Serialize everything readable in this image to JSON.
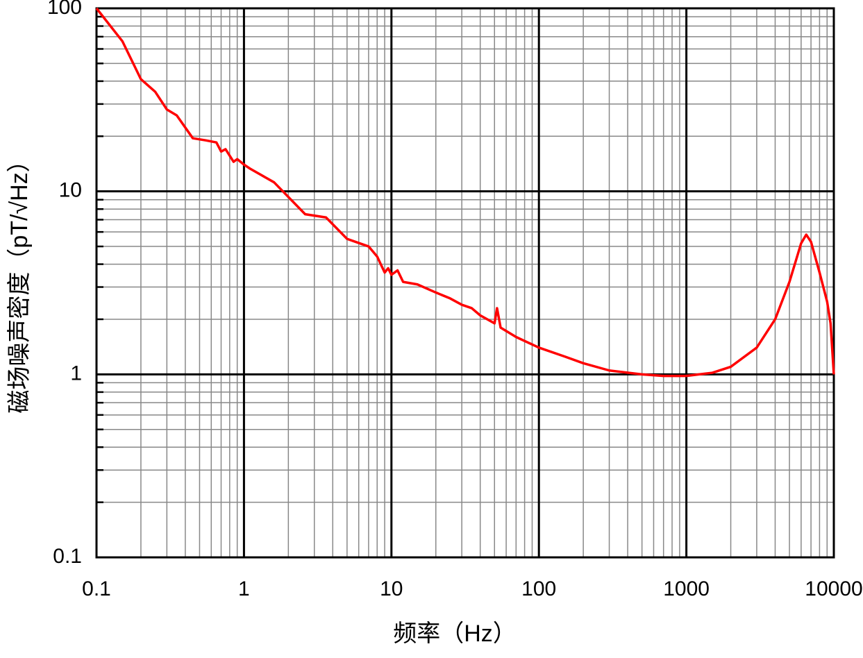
{
  "chart_data": {
    "type": "line",
    "xlabel": "频率（Hz）",
    "ylabel": "磁场噪声密度（pT/√Hz）",
    "xlog": true,
    "ylog": true,
    "grid": true,
    "minor_grid": true,
    "xlim": [
      0.1,
      10000
    ],
    "ylim": [
      0.1,
      100
    ],
    "xticks": [
      0.1,
      1,
      10,
      100,
      1000,
      10000
    ],
    "yticks": [
      0.1,
      1,
      10,
      100
    ],
    "color": "#ff0000",
    "x": [
      0.1,
      0.15,
      0.2,
      0.25,
      0.3,
      0.35,
      0.45,
      0.55,
      0.65,
      0.7,
      0.75,
      0.85,
      0.9,
      1.0,
      1.1,
      1.6,
      2.6,
      3.6,
      5,
      7,
      8,
      9,
      9.5,
      10,
      11,
      12,
      15,
      20,
      25,
      30,
      35,
      40,
      50,
      52,
      55,
      70,
      100,
      150,
      200,
      300,
      500,
      700,
      1000,
      1500,
      2000,
      3000,
      4000,
      5000,
      6000,
      6500,
      7000,
      8000,
      9000,
      9500,
      10000
    ],
    "values": [
      100,
      66,
      41,
      35,
      28,
      26,
      19.5,
      19,
      18.5,
      16.5,
      17,
      14.5,
      15,
      14,
      13.3,
      11.2,
      7.5,
      7.2,
      5.5,
      5,
      4.4,
      3.6,
      3.8,
      3.5,
      3.7,
      3.2,
      3.1,
      2.8,
      2.6,
      2.4,
      2.3,
      2.1,
      1.9,
      2.3,
      1.8,
      1.6,
      1.4,
      1.25,
      1.15,
      1.05,
      1.0,
      0.98,
      0.98,
      1.02,
      1.1,
      1.4,
      2.0,
      3.2,
      5.2,
      5.8,
      5.3,
      3.6,
      2.5,
      1.9,
      1.0
    ]
  }
}
